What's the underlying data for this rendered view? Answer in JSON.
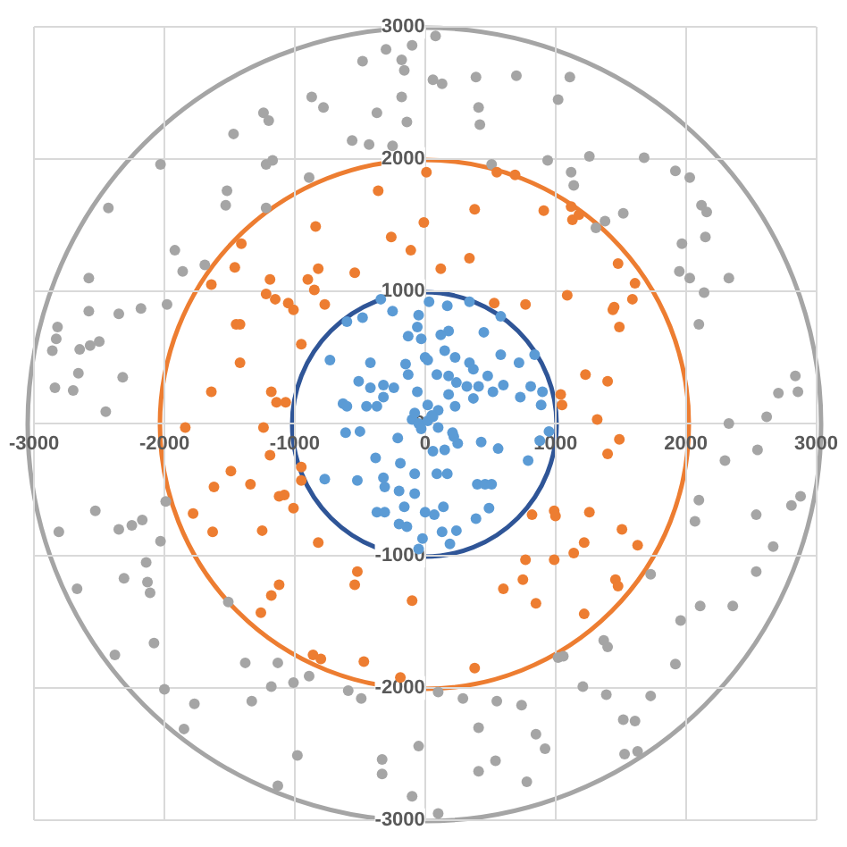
{
  "chart_data": {
    "type": "scatter",
    "xlim": [
      -3000,
      3000
    ],
    "ylim": [
      -3000,
      3000
    ],
    "xticks": [
      -3000,
      -2000,
      -1000,
      0,
      1000,
      2000,
      3000
    ],
    "yticks": [
      -3000,
      -2000,
      -1000,
      0,
      1000,
      2000,
      3000
    ],
    "grid": true,
    "marker": "circle",
    "series": [
      {
        "type": "scatter",
        "color": "#a5a5a5",
        "x": [
          -480,
          -300,
          -100,
          -180,
          -160,
          -870,
          -780,
          -180,
          -140,
          -370,
          -1240,
          -1200,
          -1470,
          -560,
          -430,
          -250,
          -1220,
          -1170,
          -2030,
          -890,
          -1520,
          -1530,
          -1220,
          -2430,
          -1920,
          -1860,
          -1690,
          -2580,
          -2580,
          -2350,
          -2180,
          -1980,
          -2820,
          -2830,
          -2860,
          -2650,
          -2570,
          -2500,
          -2660,
          -2320,
          -2840,
          -2700,
          -2450,
          80,
          60,
          130,
          390,
          700,
          1110,
          1020,
          410,
          420,
          940,
          1260,
          1680,
          1120,
          1140,
          1920,
          2030,
          510,
          1520,
          2120,
          2160,
          2150,
          1970,
          1950,
          2030,
          2330,
          2140,
          2100,
          2840,
          2860,
          2710,
          2620,
          2330,
          1380,
          1310,
          -2530,
          -2810,
          -2350,
          -2250,
          -2170,
          -1990,
          -2030,
          -2140,
          -2310,
          -2130,
          -2110,
          -2670,
          -1510,
          -2080,
          -2380,
          -1380,
          -1130,
          -2000,
          -1770,
          -1330,
          -1180,
          -1010,
          -890,
          -590,
          -490,
          -1850,
          -980,
          -1130,
          -330,
          -330,
          -100,
          -50,
          2300,
          2550,
          2100,
          2070,
          2540,
          2880,
          2810,
          2670,
          2540,
          1730,
          2110,
          2360,
          1960,
          1370,
          1400,
          1920,
          1020,
          1060,
          1210,
          1390,
          1730,
          100,
          290,
          550,
          740,
          410,
          850,
          920,
          1520,
          1610,
          1530,
          1630,
          540,
          410,
          780,
          100
        ],
        "values": [
          2740,
          2830,
          2860,
          2750,
          2670,
          2470,
          2390,
          2470,
          2280,
          2350,
          2350,
          2290,
          2190,
          2140,
          2110,
          2100,
          1960,
          1990,
          1960,
          1860,
          1760,
          1650,
          1630,
          1630,
          1310,
          1150,
          1200,
          1100,
          850,
          830,
          870,
          900,
          730,
          640,
          550,
          560,
          590,
          620,
          380,
          350,
          270,
          250,
          90,
          2930,
          2600,
          2570,
          2620,
          2630,
          2620,
          2450,
          2390,
          2260,
          1990,
          2020,
          2010,
          1900,
          1800,
          1910,
          1860,
          1960,
          1590,
          1650,
          1600,
          1410,
          1360,
          1150,
          1100,
          1100,
          990,
          750,
          360,
          240,
          230,
          50,
          0,
          1530,
          1480,
          -660,
          -820,
          -800,
          -770,
          -730,
          -590,
          -890,
          -1050,
          -1170,
          -1200,
          -1280,
          -1250,
          -1350,
          -1660,
          -1750,
          -1810,
          -1810,
          -2010,
          -2120,
          -2100,
          -1990,
          -1960,
          -1910,
          -2020,
          -2080,
          -2310,
          -2510,
          -2740,
          -2540,
          -2650,
          -2820,
          -2440,
          -280,
          -200,
          -580,
          -740,
          -690,
          -550,
          -620,
          -930,
          -1120,
          -1140,
          -1380,
          -1380,
          -1490,
          -1640,
          -1690,
          -1820,
          -1770,
          -1760,
          -1990,
          -2050,
          -2060,
          -2030,
          -2080,
          -2100,
          -2130,
          -2300,
          -2350,
          -2460,
          -2240,
          -2250,
          -2500,
          -2480,
          -2550,
          -2630,
          -2710,
          -2950
        ]
      },
      {
        "type": "scatter",
        "color": "#ed7d31",
        "x": [
          10,
          -360,
          -10,
          -840,
          -260,
          -110,
          -1410,
          -1460,
          -1190,
          -900,
          -820,
          -850,
          -540,
          -1640,
          -1220,
          -1150,
          -1050,
          -1010,
          -770,
          -1450,
          -1420,
          -950,
          -1420,
          -1640,
          -1180,
          -1140,
          -1070,
          -1840,
          -1240,
          550,
          690,
          380,
          910,
          1120,
          1130,
          1180,
          340,
          120,
          1480,
          1610,
          1590,
          1090,
          1440,
          1450,
          1490,
          530,
          770,
          1230,
          1400,
          1040,
          1050,
          1320,
          -1190,
          -950,
          -950,
          -1490,
          -1620,
          -1340,
          -1120,
          -1080,
          -1010,
          -1780,
          -1630,
          -1250,
          -820,
          -520,
          -540,
          -100,
          -1120,
          -1180,
          -1260,
          -860,
          -800,
          -470,
          -190,
          1490,
          1400,
          820,
          990,
          1000,
          1260,
          1510,
          1630,
          1220,
          1140,
          990,
          770,
          600,
          750,
          850,
          1460,
          1480,
          1220,
          380
        ],
        "values": [
          1900,
          1760,
          1520,
          1490,
          1410,
          1310,
          1360,
          1180,
          1090,
          1090,
          1170,
          1010,
          1140,
          1050,
          980,
          940,
          910,
          860,
          900,
          750,
          750,
          600,
          460,
          240,
          240,
          160,
          160,
          -30,
          -30,
          1900,
          1880,
          1620,
          1610,
          1640,
          1540,
          1580,
          1250,
          1170,
          1210,
          1060,
          940,
          970,
          860,
          880,
          730,
          910,
          900,
          370,
          320,
          220,
          140,
          30,
          -240,
          -330,
          -430,
          -360,
          -480,
          -460,
          -550,
          -540,
          -640,
          -680,
          -820,
          -810,
          -900,
          -1120,
          -1220,
          -1340,
          -1220,
          -1300,
          -1430,
          -1750,
          -1780,
          -1800,
          -1920,
          -120,
          -230,
          -690,
          -660,
          -700,
          -670,
          -800,
          -920,
          -900,
          -980,
          -1030,
          -1030,
          -1250,
          -1180,
          -1360,
          -1180,
          -1230,
          -1440,
          -1850
        ]
      },
      {
        "type": "scatter",
        "color": "#5b9bd5",
        "x": [
          -340,
          -250,
          -480,
          -600,
          -50,
          -130,
          -30,
          -60,
          -420,
          -730,
          -150,
          -130,
          -510,
          -320,
          -420,
          -240,
          -630,
          -600,
          -450,
          -370,
          -320,
          -60,
          0,
          -100,
          -50,
          30,
          170,
          340,
          580,
          450,
          180,
          120,
          20,
          150,
          230,
          340,
          370,
          580,
          720,
          840,
          480,
          600,
          180,
          90,
          240,
          320,
          410,
          520,
          730,
          810,
          900,
          890,
          370,
          180,
          230,
          100,
          60,
          20,
          -500,
          -610,
          -770,
          -520,
          -380,
          -190,
          -320,
          -310,
          -200,
          -80,
          -370,
          -310,
          -160,
          -200,
          -140,
          -20,
          -50,
          -80,
          -210,
          60,
          150,
          250,
          220,
          430,
          560,
          790,
          880,
          950,
          90,
          170,
          400,
          460,
          510,
          490,
          390,
          140,
          0,
          70,
          240,
          130,
          190,
          210,
          20,
          -30,
          50,
          -80,
          100
        ],
        "values": [
          940,
          850,
          800,
          770,
          820,
          660,
          640,
          730,
          460,
          480,
          450,
          370,
          320,
          290,
          270,
          270,
          150,
          130,
          130,
          130,
          200,
          240,
          500,
          30,
          0,
          920,
          890,
          920,
          810,
          690,
          700,
          670,
          480,
          550,
          500,
          460,
          410,
          520,
          460,
          520,
          360,
          290,
          360,
          370,
          310,
          280,
          280,
          240,
          200,
          280,
          240,
          140,
          190,
          220,
          130,
          100,
          50,
          140,
          -60,
          -70,
          -420,
          -430,
          -260,
          -300,
          -410,
          -480,
          -510,
          -530,
          -670,
          -670,
          -630,
          -760,
          -780,
          -870,
          -950,
          -380,
          -110,
          -210,
          -200,
          -150,
          -100,
          -140,
          -190,
          -280,
          -130,
          -60,
          -380,
          -380,
          -460,
          -460,
          -460,
          -640,
          -720,
          -630,
          -670,
          -690,
          -810,
          -820,
          -910,
          -70,
          20,
          -40,
          60,
          80,
          -30
        ]
      }
    ]
  }
}
